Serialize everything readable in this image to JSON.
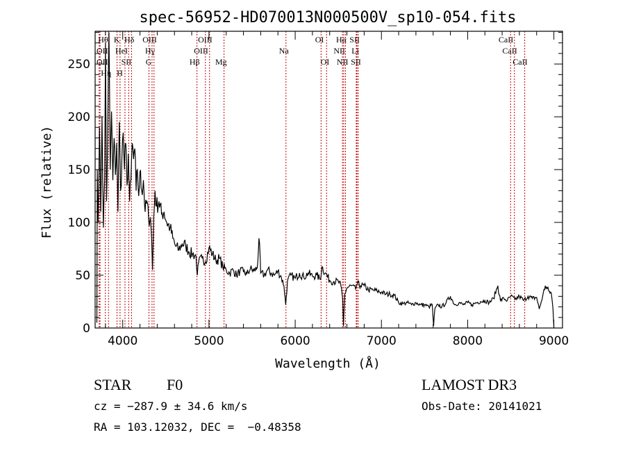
{
  "chart_data": {
    "type": "line",
    "title": "spec-56952-HD070013N000500V_sp10-054.fits",
    "xlabel": "Wavelength (Å)",
    "ylabel": "Flux (relative)",
    "xlim": [
      3680,
      9100
    ],
    "ylim": [
      0,
      281
    ],
    "xticks": [
      4000,
      5000,
      6000,
      7000,
      8000,
      9000
    ],
    "yticks": [
      0,
      50,
      100,
      150,
      200,
      250
    ],
    "grid": false,
    "series": [
      {
        "name": "spectrum",
        "color": "#000000",
        "points": [
          [
            3700,
            5
          ],
          [
            3705,
            150
          ],
          [
            3715,
            100
          ],
          [
            3730,
            190
          ],
          [
            3745,
            110
          ],
          [
            3760,
            200
          ],
          [
            3775,
            95
          ],
          [
            3790,
            140
          ],
          [
            3800,
            270
          ],
          [
            3812,
            120
          ],
          [
            3825,
            175
          ],
          [
            3840,
            280
          ],
          [
            3855,
            150
          ],
          [
            3870,
            205
          ],
          [
            3885,
            140
          ],
          [
            3900,
            180
          ],
          [
            3915,
            145
          ],
          [
            3930,
            175
          ],
          [
            3945,
            110
          ],
          [
            3960,
            195
          ],
          [
            3975,
            130
          ],
          [
            3990,
            160
          ],
          [
            4005,
            185
          ],
          [
            4020,
            150
          ],
          [
            4035,
            175
          ],
          [
            4050,
            135
          ],
          [
            4065,
            165
          ],
          [
            4080,
            120
          ],
          [
            4095,
            140
          ],
          [
            4110,
            175
          ],
          [
            4125,
            160
          ],
          [
            4140,
            170
          ],
          [
            4155,
            130
          ],
          [
            4170,
            150
          ],
          [
            4185,
            125
          ],
          [
            4200,
            148
          ],
          [
            4220,
            130
          ],
          [
            4240,
            140
          ],
          [
            4260,
            110
          ],
          [
            4280,
            120
          ],
          [
            4300,
            103
          ],
          [
            4320,
            105
          ],
          [
            4335,
            85
          ],
          [
            4345,
            55
          ],
          [
            4360,
            105
          ],
          [
            4375,
            130
          ],
          [
            4390,
            115
          ],
          [
            4420,
            120
          ],
          [
            4450,
            108
          ],
          [
            4480,
            110
          ],
          [
            4510,
            100
          ],
          [
            4550,
            95
          ],
          [
            4580,
            85
          ],
          [
            4610,
            78
          ],
          [
            4650,
            74
          ],
          [
            4690,
            80
          ],
          [
            4730,
            78
          ],
          [
            4770,
            72
          ],
          [
            4810,
            70
          ],
          [
            4850,
            68
          ],
          [
            4865,
            50
          ],
          [
            4880,
            62
          ],
          [
            4920,
            66
          ],
          [
            4960,
            63
          ],
          [
            5000,
            76
          ],
          [
            5040,
            70
          ],
          [
            5080,
            64
          ],
          [
            5120,
            66
          ],
          [
            5160,
            58
          ],
          [
            5200,
            55
          ],
          [
            5240,
            52
          ],
          [
            5280,
            55
          ],
          [
            5320,
            50
          ],
          [
            5360,
            54
          ],
          [
            5400,
            53
          ],
          [
            5440,
            51
          ],
          [
            5480,
            56
          ],
          [
            5520,
            54
          ],
          [
            5560,
            57
          ],
          [
            5580,
            85
          ],
          [
            5600,
            52
          ],
          [
            5640,
            50
          ],
          [
            5680,
            55
          ],
          [
            5720,
            52
          ],
          [
            5760,
            50
          ],
          [
            5800,
            54
          ],
          [
            5840,
            48
          ],
          [
            5870,
            40
          ],
          [
            5890,
            22
          ],
          [
            5910,
            44
          ],
          [
            5950,
            50
          ],
          [
            6000,
            47
          ],
          [
            6050,
            52
          ],
          [
            6100,
            48
          ],
          [
            6150,
            52
          ],
          [
            6200,
            49
          ],
          [
            6250,
            50
          ],
          [
            6290,
            46
          ],
          [
            6310,
            58
          ],
          [
            6350,
            52
          ],
          [
            6400,
            45
          ],
          [
            6450,
            44
          ],
          [
            6500,
            44
          ],
          [
            6530,
            40
          ],
          [
            6550,
            28
          ],
          [
            6560,
            2
          ],
          [
            6575,
            32
          ],
          [
            6600,
            38
          ],
          [
            6650,
            40
          ],
          [
            6700,
            37
          ],
          [
            6720,
            42
          ],
          [
            6760,
            40
          ],
          [
            6800,
            40
          ],
          [
            6850,
            36
          ],
          [
            6900,
            36
          ],
          [
            6950,
            35
          ],
          [
            7000,
            34
          ],
          [
            7050,
            32
          ],
          [
            7100,
            32
          ],
          [
            7150,
            31
          ],
          [
            7200,
            24
          ],
          [
            7250,
            23
          ],
          [
            7300,
            24
          ],
          [
            7350,
            22
          ],
          [
            7400,
            24
          ],
          [
            7450,
            22
          ],
          [
            7500,
            22
          ],
          [
            7550,
            20
          ],
          [
            7590,
            22
          ],
          [
            7605,
            2
          ],
          [
            7620,
            18
          ],
          [
            7660,
            22
          ],
          [
            7700,
            20
          ],
          [
            7750,
            24
          ],
          [
            7800,
            30
          ],
          [
            7850,
            22
          ],
          [
            7900,
            24
          ],
          [
            7950,
            22
          ],
          [
            8000,
            24
          ],
          [
            8050,
            22
          ],
          [
            8100,
            24
          ],
          [
            8150,
            25
          ],
          [
            8200,
            26
          ],
          [
            8250,
            24
          ],
          [
            8300,
            28
          ],
          [
            8350,
            40
          ],
          [
            8380,
            26
          ],
          [
            8420,
            28
          ],
          [
            8460,
            26
          ],
          [
            8500,
            30
          ],
          [
            8550,
            27
          ],
          [
            8600,
            30
          ],
          [
            8650,
            26
          ],
          [
            8700,
            30
          ],
          [
            8750,
            28
          ],
          [
            8800,
            29
          ],
          [
            8830,
            18
          ],
          [
            8870,
            30
          ],
          [
            8900,
            40
          ],
          [
            8940,
            35
          ],
          [
            8970,
            33
          ],
          [
            8990,
            18
          ],
          [
            9000,
            0
          ]
        ]
      }
    ],
    "lines": [
      {
        "label": "Hθ",
        "wave": 3798,
        "row": 0
      },
      {
        "label": "K",
        "wave": 3934,
        "row": 0
      },
      {
        "label": "Hδ",
        "wave": 4102,
        "row": 0
      },
      {
        "label": "OIII",
        "wave": 4363,
        "row": 0
      },
      {
        "label": "OIII",
        "wave": 5007,
        "row": 0
      },
      {
        "label": "OI",
        "wave": 6300,
        "row": 0
      },
      {
        "label": "Hα",
        "wave": 6563,
        "row": 0
      },
      {
        "label": "SII",
        "wave": 6716,
        "row": 0
      },
      {
        "label": "CaII",
        "wave": 8498,
        "row": 0
      },
      {
        "label": "OII",
        "wave": 3727,
        "row": 1
      },
      {
        "label": "HeI",
        "wave": 4026,
        "row": 1
      },
      {
        "label": "SII",
        "wave": 4069,
        "row": 1
      },
      {
        "label": "Hγ",
        "wave": 4340,
        "row": 1
      },
      {
        "label": "OIII",
        "wave": 4959,
        "row": 1
      },
      {
        "label": "Na",
        "wave": 5893,
        "row": 1
      },
      {
        "label": "NII",
        "wave": 6548,
        "row": 1
      },
      {
        "label": "Li",
        "wave": 6708,
        "row": 1
      },
      {
        "label": "CaII",
        "wave": 8542,
        "row": 1
      },
      {
        "label": "OII",
        "wave": 3737,
        "row": 2
      },
      {
        "label": "Hη",
        "wave": 3835,
        "row": 2
      },
      {
        "label": "H",
        "wave": 3969,
        "row": 2
      },
      {
        "label": "G",
        "wave": 4304,
        "row": 2
      },
      {
        "label": "Hβ",
        "wave": 4861,
        "row": 2
      },
      {
        "label": "Mg",
        "wave": 5175,
        "row": 2
      },
      {
        "label": "OI",
        "wave": 6364,
        "row": 2
      },
      {
        "label": "NII",
        "wave": 6583,
        "row": 2
      },
      {
        "label": "SII",
        "wave": 6731,
        "row": 2
      },
      {
        "label": "CaII",
        "wave": 8662,
        "row": 2
      }
    ],
    "line_color": "#c00000",
    "annotations": {
      "object_class": "STAR",
      "subclass": "F0",
      "survey": "LAMOST DR3",
      "cz": "cz = −287.9 ± 34.6 km/s",
      "obs_date": "Obs-Date: 20141021",
      "coords": "RA = 103.12032, DEC =  −0.48358"
    }
  }
}
